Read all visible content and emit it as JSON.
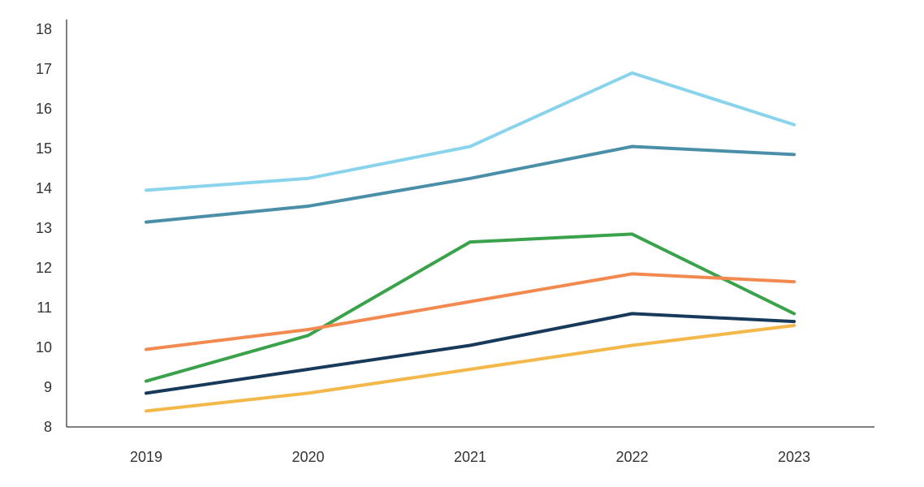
{
  "chart_data": {
    "type": "line",
    "title": "",
    "xlabel": "",
    "ylabel": "",
    "categories": [
      "2019",
      "2020",
      "2021",
      "2022",
      "2023"
    ],
    "ylim": [
      8,
      18
    ],
    "yticks": [
      8,
      9,
      10,
      11,
      12,
      13,
      14,
      15,
      16,
      17,
      18
    ],
    "grid": false,
    "legend": "none",
    "series": [
      {
        "color": "#89d4ec",
        "values": [
          13.95,
          14.25,
          15.05,
          16.9,
          15.6
        ]
      },
      {
        "color": "#4a8fa8",
        "values": [
          13.15,
          13.55,
          14.25,
          15.05,
          14.85
        ]
      },
      {
        "color": "#3aa24a",
        "values": [
          9.15,
          10.3,
          12.65,
          12.85,
          10.85
        ]
      },
      {
        "color": "#f28a50",
        "values": [
          9.95,
          10.45,
          11.15,
          11.85,
          11.65
        ]
      },
      {
        "color": "#183a5a",
        "values": [
          8.85,
          9.45,
          10.05,
          10.85,
          10.65
        ]
      },
      {
        "color": "#f4b84a",
        "values": [
          8.4,
          8.85,
          9.45,
          10.05,
          10.55
        ]
      }
    ]
  }
}
